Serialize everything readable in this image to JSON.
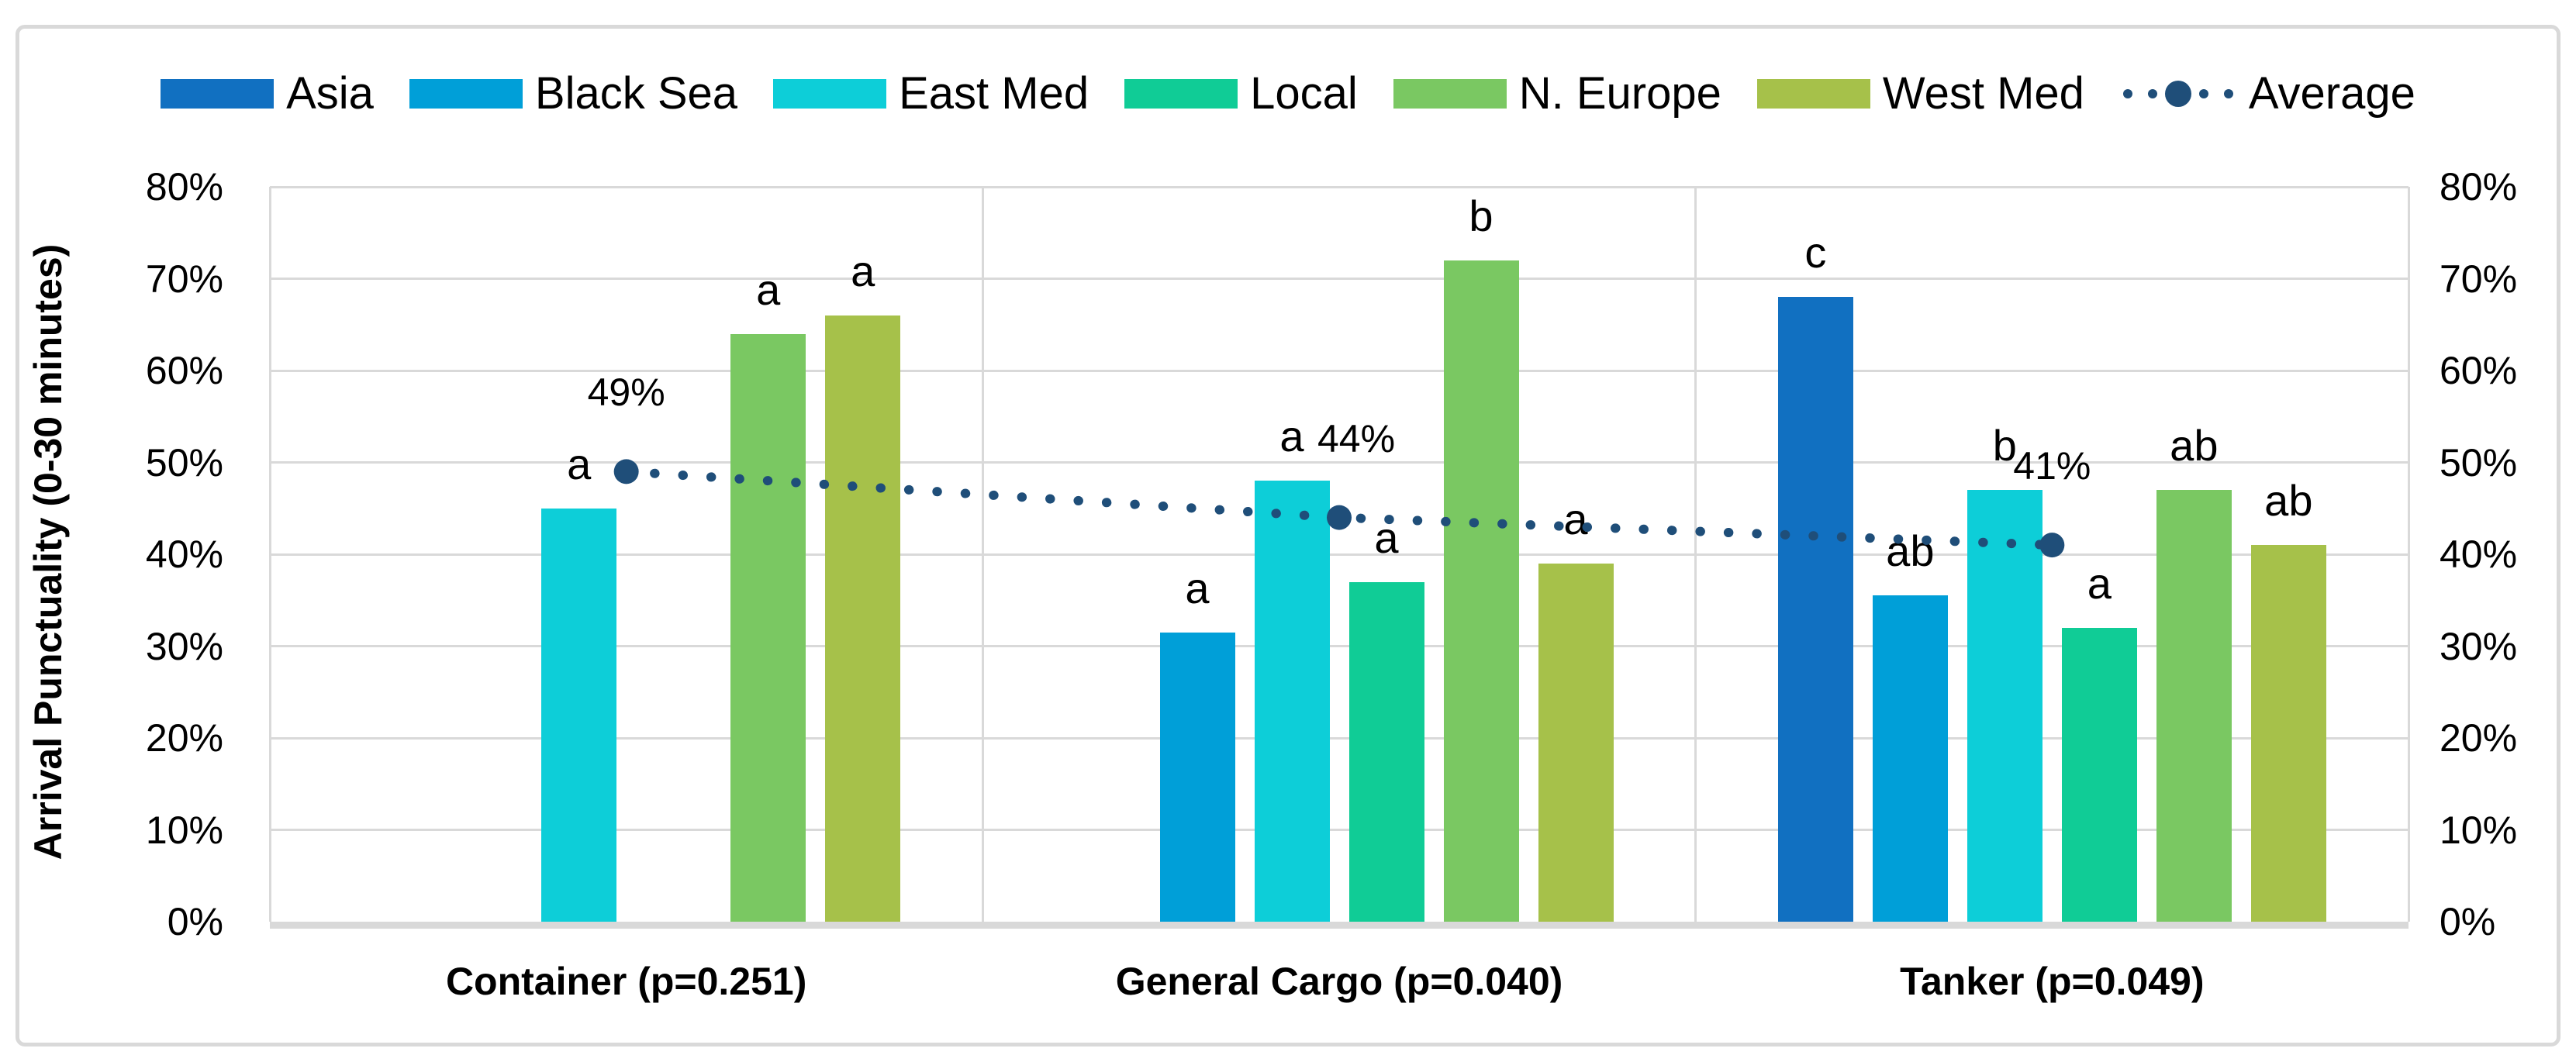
{
  "chart_data": {
    "type": "bar",
    "title": "",
    "ylabel": "Arrival Punctuality (0-30 minutes)",
    "xlabel": "",
    "y_axis": {
      "min": 0,
      "max": 80,
      "step": 10,
      "ticks": [
        "0%",
        "10%",
        "20%",
        "30%",
        "40%",
        "50%",
        "60%",
        "70%",
        "80%"
      ],
      "shown_on": "both-sides",
      "grid": true
    },
    "legend_position": "top-center",
    "series_order": [
      "Asia",
      "Black Sea",
      "East Med",
      "Local",
      "N. Europe",
      "West Med"
    ],
    "legend": [
      {
        "name": "Asia",
        "color": "#1170C1",
        "marker": "swatch"
      },
      {
        "name": "Black Sea",
        "color": "#009FD8",
        "marker": "swatch"
      },
      {
        "name": "East Med",
        "color": "#0DCED8",
        "marker": "swatch"
      },
      {
        "name": "Local",
        "color": "#10CC96",
        "marker": "swatch"
      },
      {
        "name": "N. Europe",
        "color": "#7AC862",
        "marker": "swatch"
      },
      {
        "name": "West Med",
        "color": "#A6C14A",
        "marker": "swatch"
      },
      {
        "name": "Average",
        "color": "#1F4E79",
        "marker": "dotted-line"
      }
    ],
    "categories": [
      {
        "label": "Container (p=0.251)",
        "bars": [
          {
            "series": "East Med",
            "value": 45,
            "letter": "a"
          },
          {
            "series": "N. Europe",
            "value": 64,
            "letter": "a"
          },
          {
            "series": "West Med",
            "value": 66,
            "letter": "a"
          }
        ]
      },
      {
        "label": "General Cargo (p=0.040)",
        "bars": [
          {
            "series": "Black Sea",
            "value": 31.5,
            "letter": "a"
          },
          {
            "series": "East Med",
            "value": 48,
            "letter": "a"
          },
          {
            "series": "Local",
            "value": 37,
            "letter": "a"
          },
          {
            "series": "N. Europe",
            "value": 72,
            "letter": "b"
          },
          {
            "series": "West Med",
            "value": 39,
            "letter": "a"
          }
        ]
      },
      {
        "label": "Tanker (p=0.049)",
        "bars": [
          {
            "series": "Asia",
            "value": 68,
            "letter": "c"
          },
          {
            "series": "Black Sea",
            "value": 35.5,
            "letter": "ab"
          },
          {
            "series": "East Med",
            "value": 47,
            "letter": "b"
          },
          {
            "series": "Local",
            "value": 32,
            "letter": "a"
          },
          {
            "series": "N. Europe",
            "value": 47,
            "letter": "ab"
          },
          {
            "series": "West Med",
            "value": 41,
            "letter": "ab"
          }
        ]
      }
    ],
    "average_line": {
      "name": "Average",
      "color": "#1F4E79",
      "style": "dotted-with-circle-markers",
      "values": [
        49,
        44,
        41
      ],
      "labels": [
        "49%",
        "44%",
        "41%"
      ]
    }
  },
  "colors": {
    "background": "#FFFFFF",
    "grid": "#D9D9D9",
    "text": "#000000",
    "average": "#1F4E79"
  }
}
